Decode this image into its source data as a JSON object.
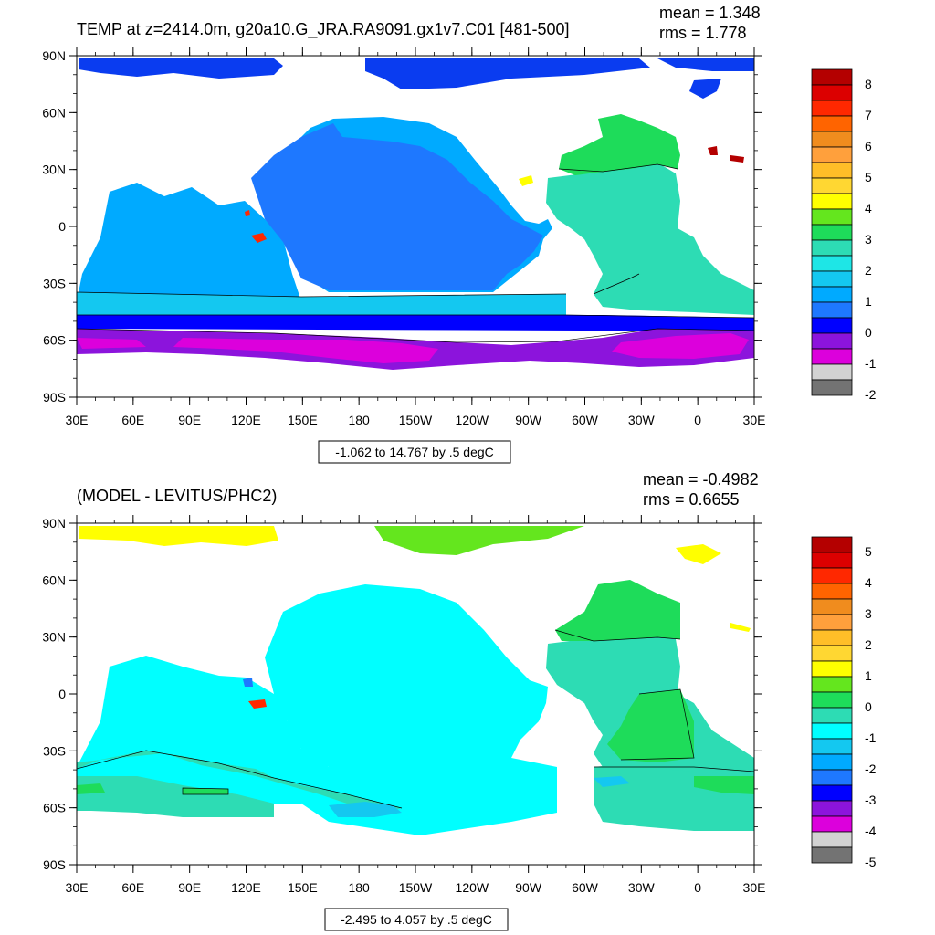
{
  "panels": [
    {
      "title": "TEMP at z=2414.0m, g20a10.G_JRA.RA9091.gx1v7.C01 [481-500]",
      "mean_label": "mean = 1.348",
      "rms_label": "rms = 1.778",
      "range_label": "-1.062 to 14.767 by .5 degC",
      "lat_labels": [
        "90N",
        "60N",
        "30N",
        "0",
        "30S",
        "60S",
        "90S"
      ],
      "lon_labels": [
        "30E",
        "60E",
        "90E",
        "120E",
        "150E",
        "180",
        "150W",
        "120W",
        "90W",
        "60W",
        "30W",
        "0",
        "30E"
      ],
      "colorbar": {
        "labels": [
          "8",
          "7",
          "6",
          "5",
          "4",
          "3",
          "2",
          "1",
          "0",
          "-1",
          "-2"
        ],
        "colors": [
          "#b40000",
          "#dc0000",
          "#ff2800",
          "#ff6400",
          "#f08c1e",
          "#ffa03c",
          "#ffbe28",
          "#ffd732",
          "#ffff00",
          "#64e61e",
          "#1edc5a",
          "#2ddcb4",
          "#1ee6e6",
          "#14c8f0",
          "#00aaff",
          "#1e78ff",
          "#0000ff",
          "#8c14dc",
          "#dc00dc",
          "#d2d2d2",
          "#737373"
        ]
      },
      "regions": {
        "arctic": "#0a3cf0",
        "pacific": "#1e78ff",
        "indian": "#00aaff",
        "south_band_a": "#14c8f0",
        "south_band_b": "#0000ff",
        "southern_ocean": "#8c14dc",
        "southern_ocean_core": "#dc00dc",
        "north_atlantic": "#1edc5a",
        "atlantic": "#2ddcb4",
        "hot_spot": "#ff2800",
        "warm_spot": "#ffff00",
        "med_spot": "#b40000"
      }
    },
    {
      "title": "(MODEL - LEVITUS/PHC2)",
      "mean_label": "mean = -0.4982",
      "rms_label": "rms = 0.6655",
      "range_label": "-2.495 to 4.057 by .5 degC",
      "lat_labels": [
        "90N",
        "60N",
        "30N",
        "0",
        "30S",
        "60S",
        "90S"
      ],
      "lon_labels": [
        "30E",
        "60E",
        "90E",
        "120E",
        "150E",
        "180",
        "150W",
        "120W",
        "90W",
        "60W",
        "30W",
        "0",
        "30E"
      ],
      "colorbar": {
        "labels": [
          "5",
          "4",
          "3",
          "2",
          "1",
          "0",
          "-1",
          "-2",
          "-3",
          "-4",
          "-5"
        ],
        "colors": [
          "#b40000",
          "#dc0000",
          "#ff2800",
          "#ff6400",
          "#f08c1e",
          "#ffa03c",
          "#ffbe28",
          "#ffd732",
          "#ffff00",
          "#64e61e",
          "#1edc5a",
          "#2ddcb4",
          "#00ffff",
          "#14c8f0",
          "#00aaff",
          "#1e78ff",
          "#0000ff",
          "#8c14dc",
          "#dc00dc",
          "#d2d2d2",
          "#737373"
        ]
      },
      "regions": {
        "arctic_a": "#ffff00",
        "arctic_b": "#64e61e",
        "ocean": "#00ffff",
        "south_band": "#2ddcb4",
        "south_patch": "#1edc5a",
        "south_dip": "#14c8f0",
        "north_atlantic": "#1edc5a",
        "atlantic": "#2ddcb4",
        "atlantic_tropics": "#1edc5a",
        "hot_spot": "#ff2800",
        "cool_spot": "#1e78ff"
      }
    }
  ]
}
